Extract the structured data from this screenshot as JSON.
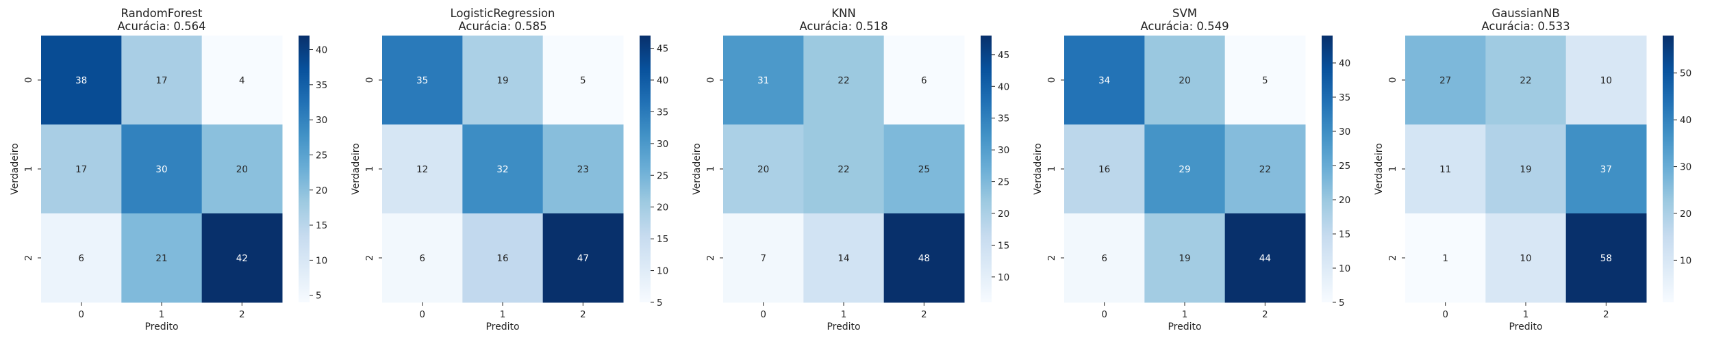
{
  "chart_data": [
    {
      "type": "heatmap",
      "title": [
        "RandomForest",
        "Acurácia: 0.564"
      ],
      "xlabel": "Predito",
      "ylabel": "Verdadeiro",
      "x_ticks": [
        "0",
        "1",
        "2"
      ],
      "y_ticks": [
        "0",
        "1",
        "2"
      ],
      "matrix": [
        [
          38,
          17,
          4
        ],
        [
          17,
          30,
          20
        ],
        [
          6,
          21,
          42
        ]
      ],
      "colormap": "Blues",
      "colorbar": {
        "min": 4,
        "max": 42,
        "ticks": [
          5,
          10,
          15,
          20,
          25,
          30,
          35,
          40
        ]
      }
    },
    {
      "type": "heatmap",
      "title": [
        "LogisticRegression",
        "Acurácia: 0.585"
      ],
      "xlabel": "Predito",
      "ylabel": "Verdadeiro",
      "x_ticks": [
        "0",
        "1",
        "2"
      ],
      "y_ticks": [
        "0",
        "1",
        "2"
      ],
      "matrix": [
        [
          35,
          19,
          5
        ],
        [
          12,
          32,
          23
        ],
        [
          6,
          16,
          47
        ]
      ],
      "colormap": "Blues",
      "colorbar": {
        "min": 5,
        "max": 47,
        "ticks": [
          5,
          10,
          15,
          20,
          25,
          30,
          35,
          40,
          45
        ]
      }
    },
    {
      "type": "heatmap",
      "title": [
        "KNN",
        "Acurácia: 0.518"
      ],
      "xlabel": "Predito",
      "ylabel": "Verdadeiro",
      "x_ticks": [
        "0",
        "1",
        "2"
      ],
      "y_ticks": [
        "0",
        "1",
        "2"
      ],
      "matrix": [
        [
          31,
          22,
          6
        ],
        [
          20,
          22,
          25
        ],
        [
          7,
          14,
          48
        ]
      ],
      "colormap": "Blues",
      "colorbar": {
        "min": 6,
        "max": 48,
        "ticks": [
          10,
          15,
          20,
          25,
          30,
          35,
          40,
          45
        ]
      }
    },
    {
      "type": "heatmap",
      "title": [
        "SVM",
        "Acurácia: 0.549"
      ],
      "xlabel": "Predito",
      "ylabel": "Verdadeiro",
      "x_ticks": [
        "0",
        "1",
        "2"
      ],
      "y_ticks": [
        "0",
        "1",
        "2"
      ],
      "matrix": [
        [
          34,
          20,
          5
        ],
        [
          16,
          29,
          22
        ],
        [
          6,
          19,
          44
        ]
      ],
      "colormap": "Blues",
      "colorbar": {
        "min": 5,
        "max": 44,
        "ticks": [
          5,
          10,
          15,
          20,
          25,
          30,
          35,
          40
        ]
      }
    },
    {
      "type": "heatmap",
      "title": [
        "GaussianNB",
        "Acurácia: 0.533"
      ],
      "xlabel": "Predito",
      "ylabel": "Verdadeiro",
      "x_ticks": [
        "0",
        "1",
        "2"
      ],
      "y_ticks": [
        "0",
        "1",
        "2"
      ],
      "matrix": [
        [
          27,
          22,
          10
        ],
        [
          11,
          19,
          37
        ],
        [
          1,
          10,
          58
        ]
      ],
      "colormap": "Blues",
      "colorbar": {
        "min": 1,
        "max": 58,
        "ticks": [
          10,
          20,
          30,
          40,
          50
        ]
      }
    }
  ]
}
